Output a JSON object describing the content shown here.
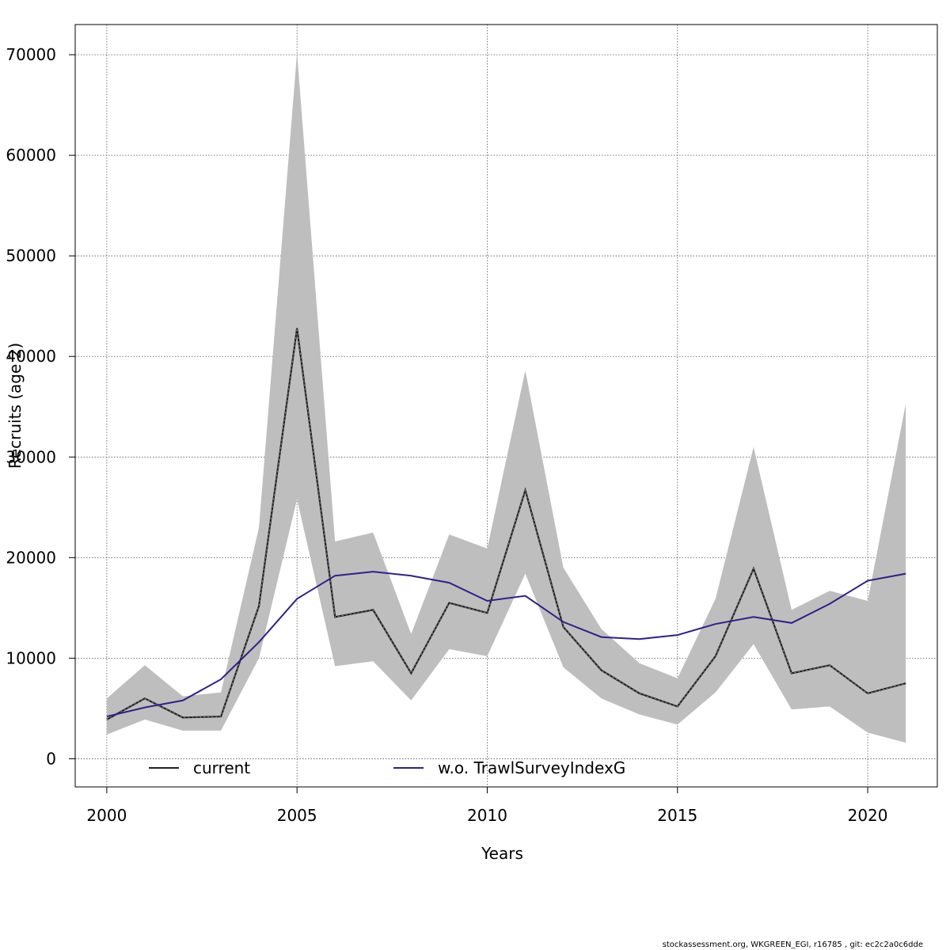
{
  "chart_data": {
    "type": "line",
    "xlabel": "Years",
    "ylabel": "Recruits (age 2)",
    "xlim": [
      1999.17,
      2021.83
    ],
    "ylim": [
      -2800,
      73000
    ],
    "x_ticks": [
      2000,
      2005,
      2010,
      2015,
      2020
    ],
    "y_ticks": [
      0,
      10000,
      20000,
      30000,
      40000,
      50000,
      60000,
      70000
    ],
    "grid": true,
    "legend_position": "bottom",
    "x": [
      2000,
      2001,
      2002,
      2003,
      2004,
      2005,
      2006,
      2007,
      2008,
      2009,
      2010,
      2011,
      2012,
      2013,
      2014,
      2015,
      2016,
      2017,
      2018,
      2019,
      2020,
      2021
    ],
    "confidence_band": {
      "series": "current",
      "color": "#bebebe",
      "lower": [
        2400,
        3900,
        2800,
        2800,
        10000,
        25800,
        9200,
        9700,
        5800,
        10900,
        10200,
        18400,
        9100,
        6000,
        4400,
        3400,
        6600,
        11400,
        4900,
        5200,
        2600,
        1600
      ],
      "upper": [
        6000,
        9300,
        6200,
        6600,
        23000,
        70200,
        21600,
        22500,
        12400,
        22300,
        20900,
        38600,
        19000,
        12900,
        9500,
        8000,
        15900,
        31000,
        14800,
        16700,
        15700,
        35300
      ]
    },
    "series": [
      {
        "name": "current",
        "color": "#222222",
        "dash": "solid-black-with-dotted-overlay",
        "values": [
          3900,
          6000,
          4100,
          4200,
          15200,
          42800,
          14100,
          14800,
          8500,
          15500,
          14500,
          26700,
          13100,
          8800,
          6500,
          5200,
          10200,
          18900,
          8500,
          9300,
          6500,
          7500
        ]
      },
      {
        "name": "w.o. TrawlSurveyIndexG",
        "color": "#2e2089",
        "values": [
          4200,
          5100,
          5800,
          7900,
          11600,
          15900,
          18200,
          18600,
          18200,
          17500,
          15700,
          16200,
          13600,
          12100,
          11900,
          12300,
          13400,
          14100,
          13500,
          15400,
          17700,
          18400
        ]
      }
    ]
  },
  "footer": {
    "text": "stockassessment.org, WKGREEN_EGI, r16785 , git: ec2c2a0c6dde"
  }
}
